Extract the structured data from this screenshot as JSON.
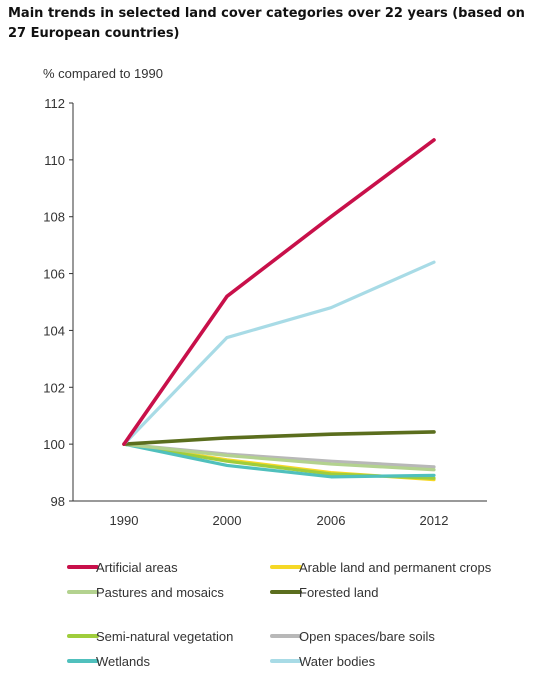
{
  "chart_data": {
    "type": "line",
    "title": "Main trends in selected land cover categories over 22 years (based on 27 European countries)",
    "ylabel": "% compared to 1990",
    "xlabel": "",
    "categories": [
      "1990",
      "2000",
      "2006",
      "2012"
    ],
    "ylim": [
      98,
      112
    ],
    "yticks": [
      98,
      100,
      102,
      104,
      106,
      108,
      110,
      112
    ],
    "grid": false,
    "legend_position": "bottom",
    "series": [
      {
        "name": "Artificial areas",
        "color": "#c8104a",
        "values": [
          100,
          105.2,
          108.0,
          110.7
        ]
      },
      {
        "name": "Arable land and permanent crops",
        "color": "#f5d826",
        "values": [
          100,
          99.45,
          99.0,
          98.75
        ]
      },
      {
        "name": "Pastures and mosaics",
        "color": "#b3d28f",
        "values": [
          100,
          99.6,
          99.3,
          99.1
        ]
      },
      {
        "name": "Forested land",
        "color": "#5b6e1e",
        "values": [
          100,
          100.22,
          100.35,
          100.43
        ]
      },
      {
        "name": "Semi-natural vegetation",
        "color": "#9fcd3c",
        "values": [
          100,
          99.4,
          98.95,
          98.8
        ]
      },
      {
        "name": "Open spaces/bare soils",
        "color": "#b8b8b8",
        "values": [
          100,
          99.65,
          99.4,
          99.2
        ]
      },
      {
        "name": "Wetlands",
        "color": "#50c0bd",
        "values": [
          100,
          99.25,
          98.85,
          98.9
        ]
      },
      {
        "name": "Water bodies",
        "color": "#a8dbe6",
        "values": [
          100,
          103.75,
          104.8,
          106.4
        ]
      }
    ]
  }
}
